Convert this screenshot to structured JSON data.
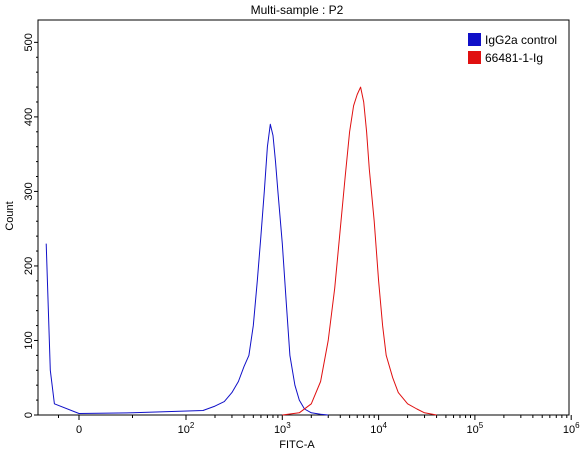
{
  "chart_data": {
    "type": "line",
    "title": "Multi-sample : P2",
    "xlabel": "FITC-A",
    "ylabel": "Count",
    "x_scale": "biexponential",
    "x_ticks": [
      {
        "value": 0,
        "base": "0",
        "exp": ""
      },
      {
        "value": 100,
        "base": "10",
        "exp": "2"
      },
      {
        "value": 1000,
        "base": "10",
        "exp": "3"
      },
      {
        "value": 10000,
        "base": "10",
        "exp": "4"
      },
      {
        "value": 100000,
        "base": "10",
        "exp": "5"
      },
      {
        "value": 1000000,
        "base": "10",
        "exp": "6"
      }
    ],
    "y_ticks": [
      "0",
      "100",
      "200",
      "300",
      "400",
      "500"
    ],
    "ylim": [
      0,
      530
    ],
    "grid": false,
    "legend_position": "top-right",
    "series": [
      {
        "name": "IgG2a control",
        "color": "#1010c8",
        "points": [
          [
            -80,
            230
          ],
          [
            -70,
            60
          ],
          [
            -60,
            15
          ],
          [
            0,
            2
          ],
          [
            50,
            3
          ],
          [
            150,
            6
          ],
          [
            200,
            12
          ],
          [
            250,
            18
          ],
          [
            300,
            30
          ],
          [
            350,
            45
          ],
          [
            400,
            65
          ],
          [
            450,
            80
          ],
          [
            500,
            120
          ],
          [
            550,
            180
          ],
          [
            600,
            240
          ],
          [
            650,
            300
          ],
          [
            700,
            360
          ],
          [
            750,
            390
          ],
          [
            800,
            375
          ],
          [
            850,
            340
          ],
          [
            900,
            300
          ],
          [
            1000,
            230
          ],
          [
            1100,
            150
          ],
          [
            1200,
            80
          ],
          [
            1350,
            40
          ],
          [
            1500,
            20
          ],
          [
            1700,
            8
          ],
          [
            2000,
            3
          ],
          [
            2500,
            1
          ],
          [
            3000,
            0
          ]
        ]
      },
      {
        "name": "66481-1-Ig",
        "color": "#e01010",
        "points": [
          [
            1000,
            0
          ],
          [
            1500,
            3
          ],
          [
            2000,
            15
          ],
          [
            2500,
            45
          ],
          [
            3000,
            100
          ],
          [
            3500,
            170
          ],
          [
            4000,
            250
          ],
          [
            4500,
            320
          ],
          [
            5000,
            380
          ],
          [
            5500,
            415
          ],
          [
            6000,
            430
          ],
          [
            6500,
            440
          ],
          [
            7000,
            420
          ],
          [
            7500,
            380
          ],
          [
            8000,
            330
          ],
          [
            9000,
            260
          ],
          [
            10000,
            180
          ],
          [
            11000,
            120
          ],
          [
            12000,
            80
          ],
          [
            14000,
            50
          ],
          [
            16000,
            30
          ],
          [
            20000,
            15
          ],
          [
            25000,
            8
          ],
          [
            30000,
            3
          ],
          [
            40000,
            0
          ]
        ]
      }
    ]
  }
}
